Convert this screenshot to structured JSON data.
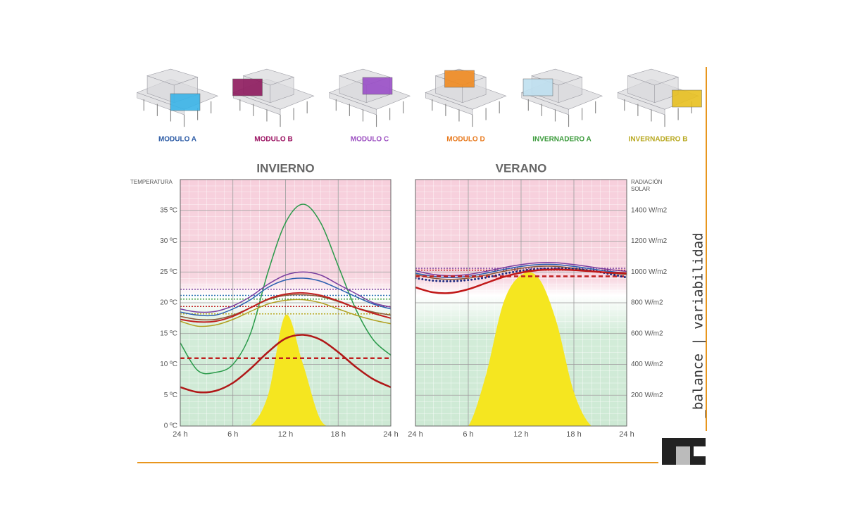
{
  "modules": [
    {
      "label": "MODULO A",
      "color": "#2d5ca6",
      "block": "#3ab4e8"
    },
    {
      "label": "MODULO B",
      "color": "#9a1060",
      "block": "#8e1a5e"
    },
    {
      "label": "MODULO C",
      "color": "#9b4ec0",
      "block": "#9a4fc8"
    },
    {
      "label": "MODULO D",
      "color": "#e87a1e",
      "block": "#f08a20"
    },
    {
      "label": "INVERNADERO A",
      "color": "#3a9a3a",
      "block": "#bfe0f0"
    },
    {
      "label": "INVERNADERO B",
      "color": "#b8a820",
      "block": "#e8c020"
    }
  ],
  "side_label": "_balance | variabilidad",
  "chart_data": [
    {
      "type": "line",
      "title": "INVIERNO",
      "ylabel": "TEMPERATURA",
      "x": [
        0,
        2,
        4,
        6,
        8,
        10,
        12,
        14,
        16,
        18,
        20,
        22,
        24
      ],
      "xlim": [
        0,
        24
      ],
      "xticks": [
        {
          "value": 0,
          "label": "24 h"
        },
        {
          "value": 6,
          "label": "6 h"
        },
        {
          "value": 12,
          "label": "12 h"
        },
        {
          "value": 18,
          "label": "18 h"
        },
        {
          "value": 24,
          "label": "24 h"
        }
      ],
      "ylim": [
        0,
        40
      ],
      "yticks": [
        {
          "value": 0,
          "label": "0 ºC"
        },
        {
          "value": 5,
          "label": "5 ºC"
        },
        {
          "value": 10,
          "label": "10 ºC"
        },
        {
          "value": 15,
          "label": "15 ºC"
        },
        {
          "value": 20,
          "label": "20 ºC"
        },
        {
          "value": 25,
          "label": "25 ºC"
        },
        {
          "value": 30,
          "label": "30 ºC"
        },
        {
          "value": 35,
          "label": "35 ºC"
        }
      ],
      "y2lim": [
        0,
        1600
      ],
      "grid": true,
      "series": [
        {
          "color": "#f5e620",
          "axis": "y2",
          "area": true,
          "values": [
            0,
            0,
            0,
            0,
            0,
            200,
            720,
            400,
            40,
            0,
            0,
            0,
            0
          ]
        },
        {
          "color": "#7a3fa0",
          "dash": "dotted",
          "width": 1.5,
          "values": [
            22.2,
            22.2,
            22.2,
            22.2,
            22.2,
            22.2,
            22.2,
            22.2,
            22.2,
            22.2,
            22.2,
            22.2,
            22.2
          ]
        },
        {
          "color": "#2a6fb0",
          "dash": "dotted",
          "width": 1.5,
          "values": [
            21.2,
            21.2,
            21.2,
            21.2,
            21.2,
            21.2,
            21.2,
            21.2,
            21.2,
            21.2,
            21.2,
            21.2,
            21.2
          ]
        },
        {
          "color": "#3a9a3a",
          "dash": "dotted",
          "width": 1.5,
          "values": [
            20.6,
            20.6,
            20.6,
            20.6,
            20.6,
            20.6,
            20.6,
            20.6,
            20.6,
            20.6,
            20.6,
            20.6,
            20.6
          ]
        },
        {
          "color": "#c02020",
          "dash": "dotted",
          "width": 1.5,
          "values": [
            19.4,
            19.4,
            19.4,
            19.4,
            19.4,
            19.4,
            19.4,
            19.4,
            19.4,
            19.4,
            19.4,
            19.4,
            19.4
          ]
        },
        {
          "color": "#b8a820",
          "dash": "dotted",
          "width": 1.5,
          "values": [
            18.2,
            18.2,
            18.2,
            18.2,
            18.2,
            18.2,
            18.2,
            18.2,
            18.2,
            18.2,
            18.2,
            18.2,
            18.2
          ]
        },
        {
          "color": "#2a9a4a",
          "width": 1.5,
          "values": [
            13.5,
            9,
            8.7,
            10,
            15,
            25,
            33,
            36,
            33,
            26,
            19,
            14,
            11.5
          ]
        },
        {
          "color": "#7a3fa0",
          "width": 1.5,
          "values": [
            19,
            18.5,
            18.6,
            19.5,
            21,
            23,
            24.5,
            25,
            24.5,
            23,
            21.5,
            20,
            19.3
          ]
        },
        {
          "color": "#2a5fb0",
          "width": 1.5,
          "values": [
            18.5,
            18,
            18,
            19,
            20.5,
            22.5,
            23.7,
            24,
            23.5,
            22.3,
            21,
            19.8,
            19
          ]
        },
        {
          "color": "#8a5a3a",
          "width": 1.5,
          "values": [
            17.8,
            17.3,
            17.3,
            18,
            19.2,
            20.5,
            21.2,
            21.3,
            21,
            20.2,
            19.2,
            18.5,
            18
          ]
        },
        {
          "color": "#b0a020",
          "width": 1.5,
          "values": [
            17,
            16.2,
            16.4,
            17.3,
            18.6,
            19.8,
            20.4,
            20.5,
            20,
            19,
            18,
            17.2,
            16.6
          ]
        },
        {
          "color": "#c02020",
          "width": 2,
          "values": [
            17.3,
            16.9,
            17,
            17.8,
            19.2,
            20.6,
            21.4,
            21.6,
            21.2,
            20.3,
            19.2,
            18.3,
            17.5
          ]
        },
        {
          "color": "#c02020",
          "dash": "dashed",
          "width": 2.5,
          "values": [
            11,
            11,
            11,
            11,
            11,
            11,
            11,
            11,
            11,
            11,
            11,
            11,
            11
          ]
        },
        {
          "color": "#b01818",
          "width": 2.5,
          "values": [
            6.3,
            5.5,
            5.7,
            7,
            9.3,
            12,
            14.2,
            14.8,
            14,
            12,
            9.6,
            7.6,
            6.3
          ]
        }
      ]
    },
    {
      "type": "line",
      "title": "VERANO",
      "y2label": "RADIACIÓN SOLAR",
      "x": [
        0,
        2,
        4,
        6,
        8,
        10,
        12,
        14,
        16,
        18,
        20,
        22,
        24
      ],
      "xlim": [
        0,
        24
      ],
      "xticks": [
        {
          "value": 0,
          "label": "24 h"
        },
        {
          "value": 6,
          "label": "6 h"
        },
        {
          "value": 12,
          "label": "12 h"
        },
        {
          "value": 18,
          "label": "18 h"
        },
        {
          "value": 24,
          "label": "24 h"
        }
      ],
      "ylim": [
        0,
        40
      ],
      "y2lim": [
        0,
        1600
      ],
      "y2ticks": [
        {
          "value": 200,
          "label": "200 W/m2"
        },
        {
          "value": 400,
          "label": "400 W/m2"
        },
        {
          "value": 600,
          "label": "600 W/m2"
        },
        {
          "value": 800,
          "label": "800 W/m2"
        },
        {
          "value": 1000,
          "label": "1000 W/m2"
        },
        {
          "value": 1200,
          "label": "1200 W/m2"
        },
        {
          "value": 1400,
          "label": "1400 W/m2"
        }
      ],
      "grid": true,
      "series": [
        {
          "color": "#f5e620",
          "axis": "y2",
          "area": true,
          "values": [
            0,
            0,
            0,
            0,
            330,
            800,
            980,
            960,
            680,
            220,
            0,
            0,
            0
          ]
        },
        {
          "color": "#7a3fa0",
          "dash": "dotted",
          "width": 1.5,
          "values": [
            25.6,
            25.6,
            25.6,
            25.6,
            25.6,
            25.6,
            25.6,
            25.6,
            25.6,
            25.6,
            25.6,
            25.6,
            25.6
          ]
        },
        {
          "color": "#c02020",
          "dash": "dotted",
          "width": 1.5,
          "values": [
            25.3,
            25.3,
            25.3,
            25.3,
            25.3,
            25.3,
            25.3,
            25.3,
            25.3,
            25.3,
            25.3,
            25.3,
            25.3
          ]
        },
        {
          "color": "#7a3fa0",
          "width": 1.5,
          "values": [
            25.2,
            24.6,
            24.4,
            24.6,
            25.1,
            25.7,
            26.2,
            26.5,
            26.5,
            26.2,
            25.8,
            25.4,
            25.1
          ]
        },
        {
          "color": "#2a5fb0",
          "width": 1.5,
          "values": [
            24.8,
            24.3,
            24.1,
            24.3,
            24.8,
            25.4,
            25.9,
            26.2,
            26.2,
            25.9,
            25.5,
            25.1,
            24.8
          ]
        },
        {
          "color": "#8a5a3a",
          "width": 1.5,
          "values": [
            24.6,
            24,
            23.8,
            24,
            24.5,
            25.1,
            25.6,
            25.9,
            25.9,
            25.6,
            25.2,
            24.8,
            24.6
          ]
        },
        {
          "color": "#c02020",
          "dash": "dashed",
          "width": 2.5,
          "values": [
            24.3,
            24.3,
            24.3,
            24.3,
            24.3,
            24.3,
            24.3,
            24.3,
            24.3,
            24.3,
            24.3,
            24.3,
            24.3
          ]
        },
        {
          "color": "#1a2a80",
          "dash": "dots",
          "width": 3,
          "values": [
            24,
            23.6,
            23.5,
            23.7,
            24.1,
            24.7,
            25.2,
            25.5,
            25.6,
            25.5,
            25.2,
            24.7,
            24.1
          ]
        },
        {
          "color": "#c01818",
          "width": 2.5,
          "values": [
            22.5,
            21.7,
            21.6,
            22.2,
            23.2,
            24.2,
            24.9,
            25.3,
            25.4,
            25.3,
            25.1,
            24.9,
            24.8
          ]
        }
      ]
    }
  ]
}
